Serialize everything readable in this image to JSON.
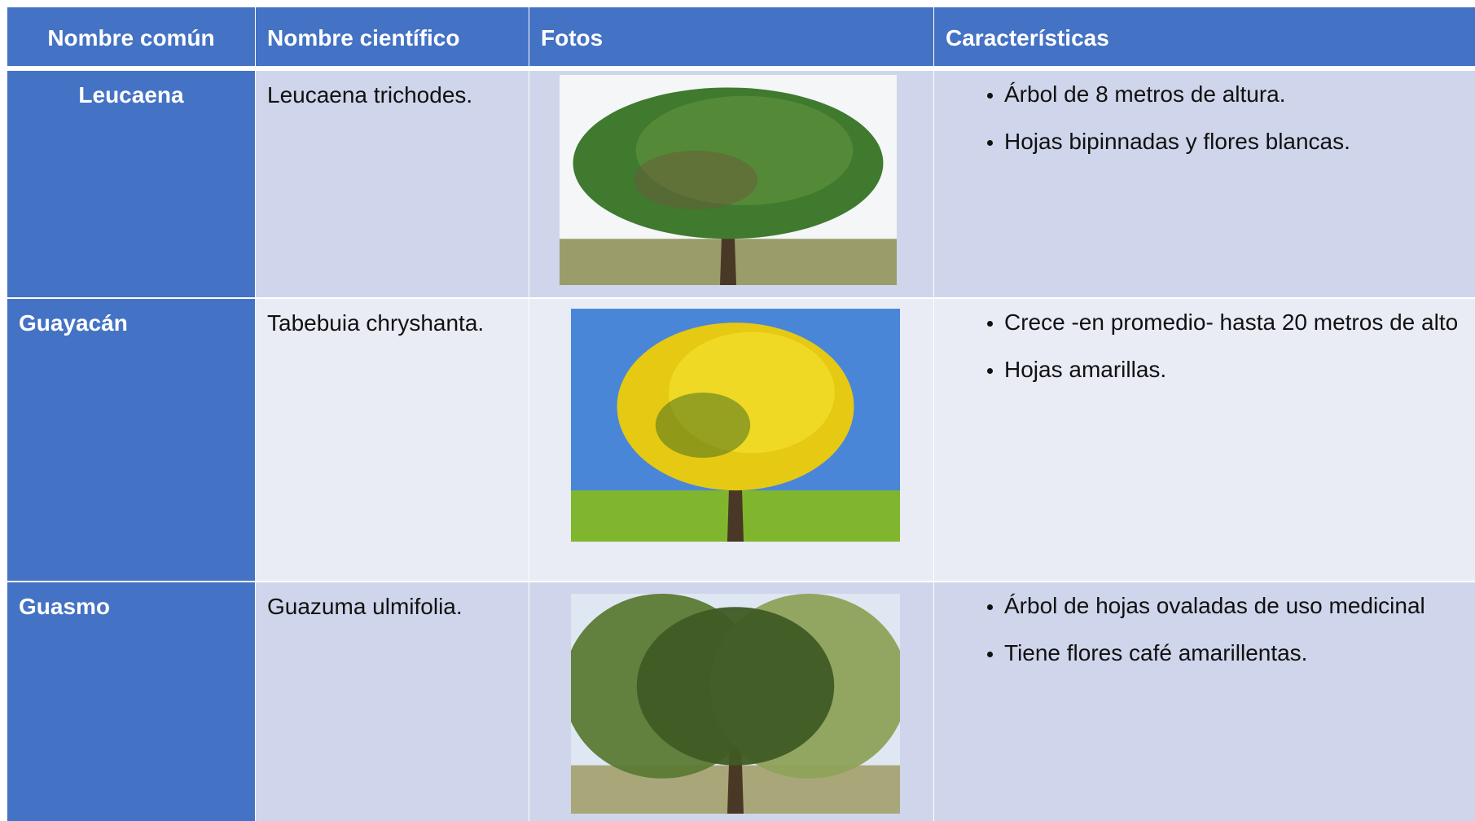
{
  "table": {
    "headers": [
      "Nombre común",
      "Nombre científico",
      "Fotos",
      "Características"
    ],
    "rows": [
      {
        "common": "Leucaena",
        "scientific": "Leucaena trichodes.",
        "features": [
          "Árbol de 8 metros de altura.",
          "Hojas bipinnadas y flores blancas."
        ]
      },
      {
        "common": "Guayacán",
        "scientific": "Tabebuia  chryshanta.",
        "features": [
          "Crece -en promedio- hasta 20 metros de alto",
          "Hojas amarillas."
        ]
      },
      {
        "common": "Guasmo",
        "scientific": "Guazuma  ulmifolia.",
        "features": [
          "Árbol de hojas ovaladas de uso medicinal",
          "Tiene flores café amarillentas."
        ]
      }
    ]
  }
}
